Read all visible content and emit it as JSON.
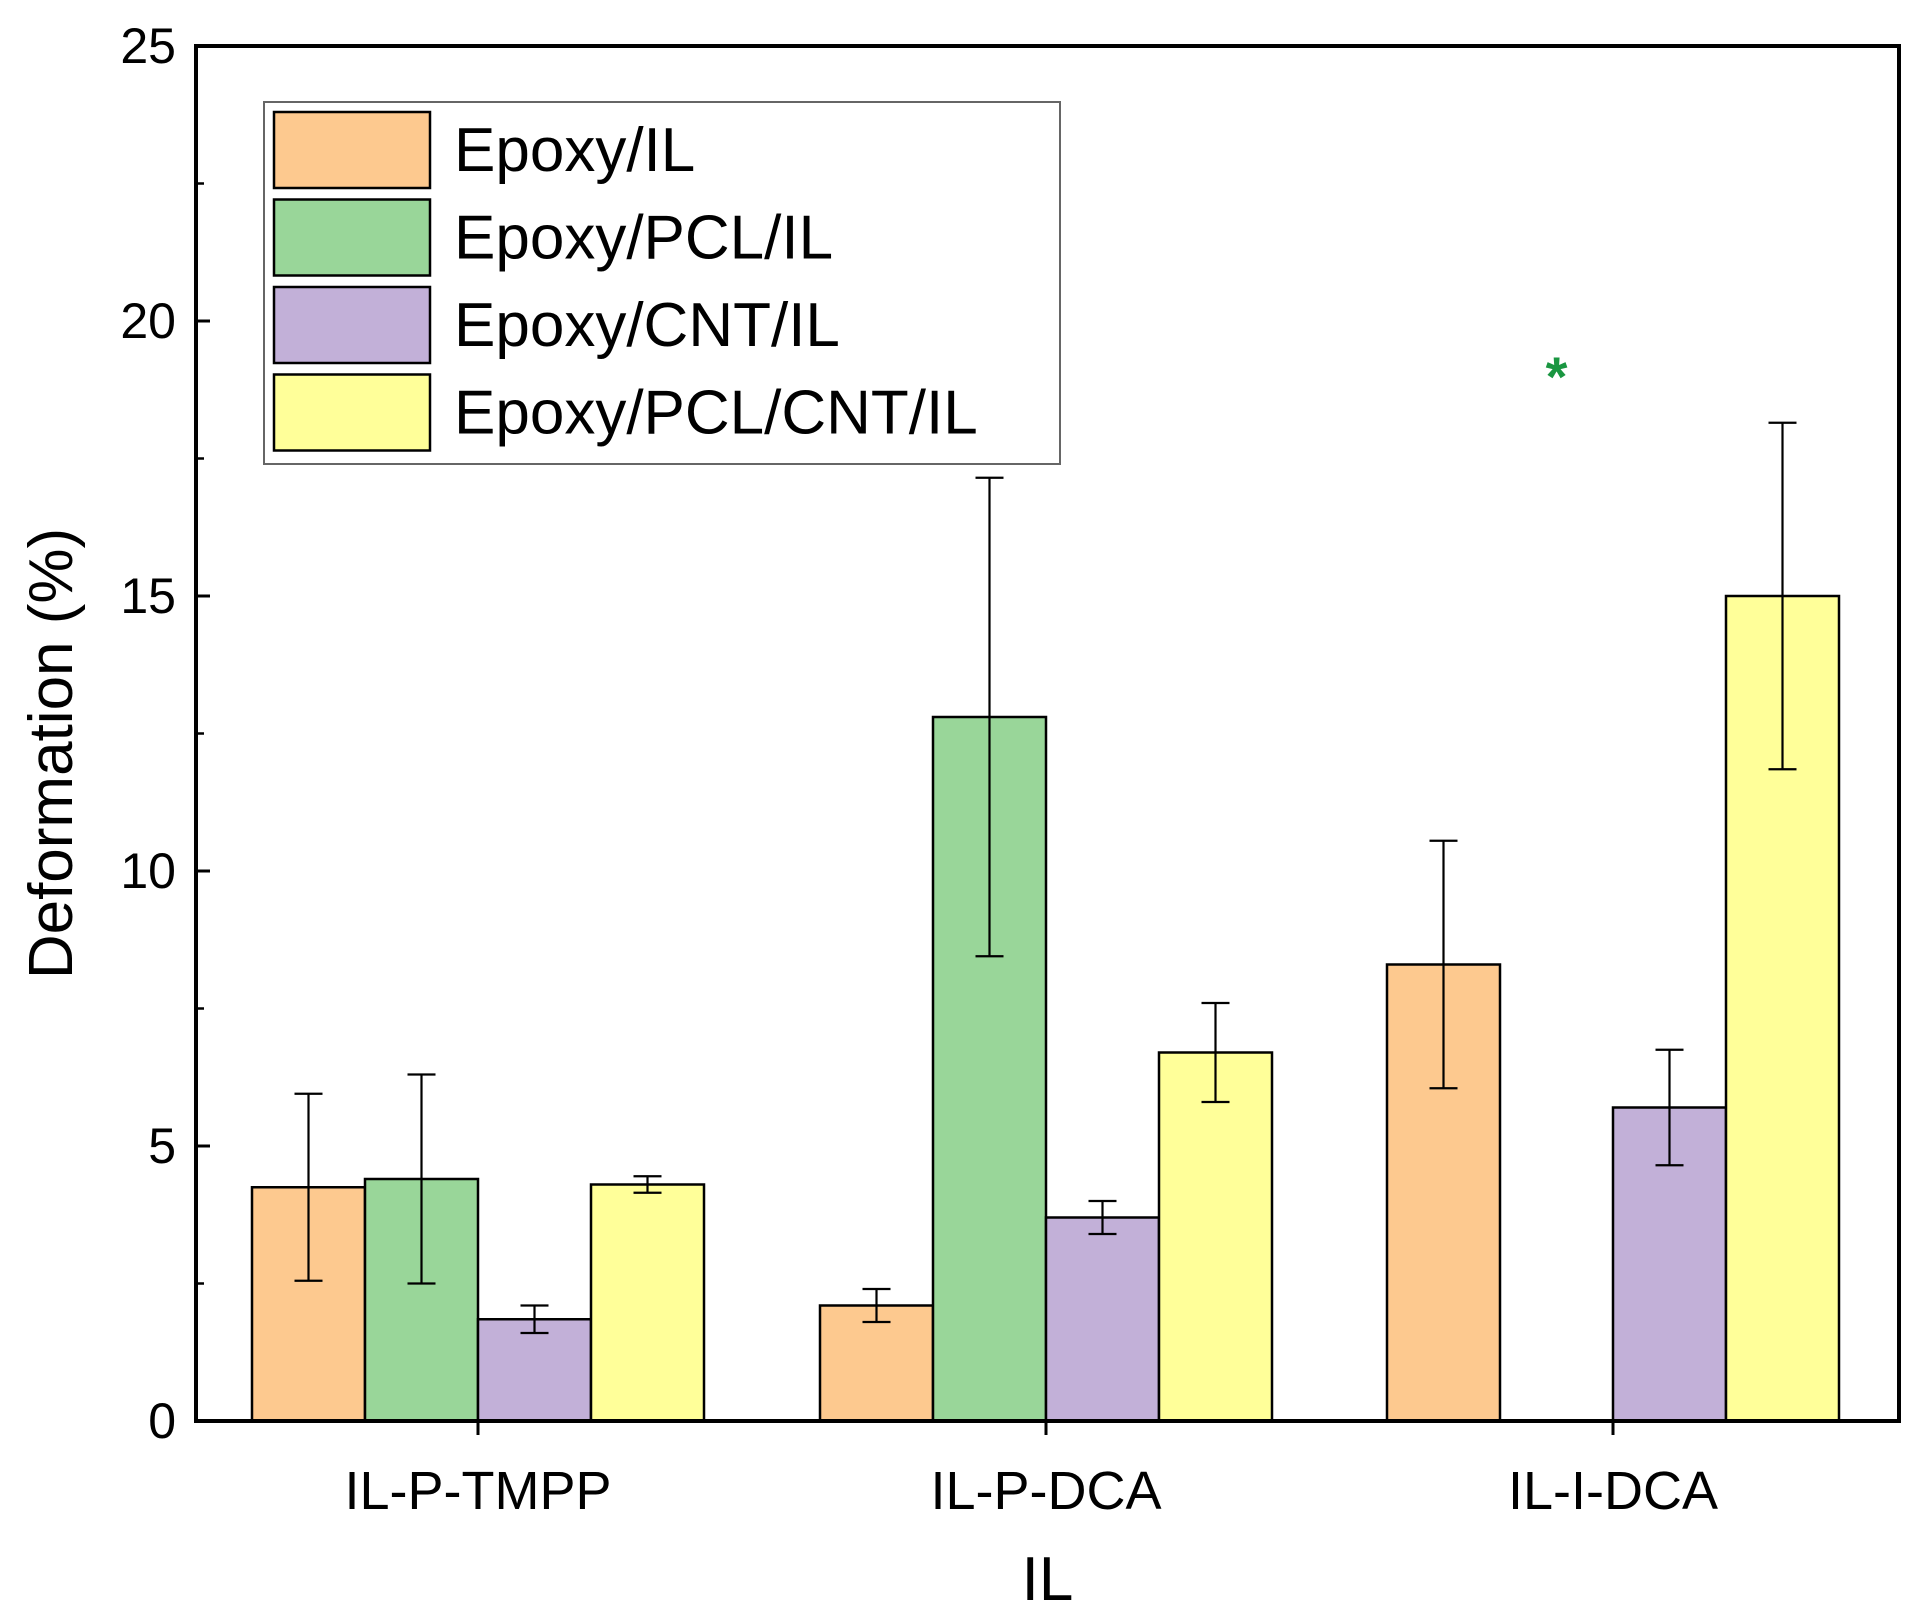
{
  "chart_data": {
    "type": "bar",
    "title": "",
    "xlabel": "IL",
    "ylabel": "Deformation (%)",
    "ylim": [
      0,
      25
    ],
    "yticks": [
      0,
      5,
      10,
      15,
      20,
      25
    ],
    "categories": [
      "IL-P-TMPP",
      "IL-P-DCA",
      "IL-I-DCA"
    ],
    "series": [
      {
        "name": "Epoxy/IL",
        "color": "#fdc98f",
        "values": [
          4.25,
          2.1,
          8.3
        ],
        "errors": [
          1.7,
          0.3,
          2.25
        ]
      },
      {
        "name": "Epoxy/PCL/IL",
        "color": "#99d699",
        "values": [
          4.4,
          12.8,
          null
        ],
        "errors": [
          1.9,
          4.35,
          null
        ]
      },
      {
        "name": "Epoxy/CNT/IL",
        "color": "#c2b0d8",
        "values": [
          1.85,
          3.7,
          5.7
        ],
        "errors": [
          0.25,
          0.3,
          1.05
        ]
      },
      {
        "name": "Epoxy/PCL/CNT/IL",
        "color": "#ffff99",
        "values": [
          4.3,
          6.7,
          15.0
        ],
        "errors": [
          0.15,
          0.9,
          3.15
        ]
      }
    ],
    "annotations": [
      {
        "text": "*",
        "category": "IL-I-DCA",
        "series": "Epoxy/PCL/IL",
        "y": 19.0,
        "color": "#1a9641"
      }
    ],
    "legend": "top-left",
    "grid": false
  }
}
